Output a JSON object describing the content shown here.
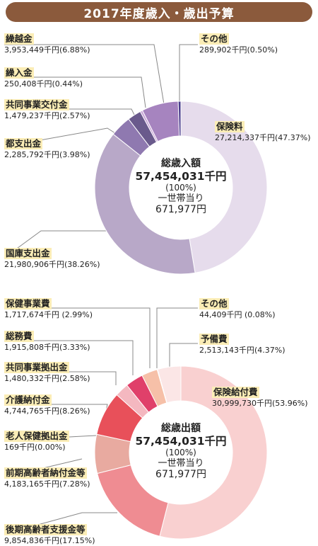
{
  "title": "2017年度歳入・歳出予算",
  "colors": {
    "banner": "#8b5a3c",
    "label_bg": "#fbedb6",
    "leader": "#888888"
  },
  "chart_data": [
    {
      "type": "pie",
      "donut": true,
      "name_note": "歳入",
      "center": {
        "title": "総歳入額",
        "amount": "57,454,031千円",
        "percent": "(100%)",
        "per_household_label": "一世帯当り",
        "per_household_value": "671,977円"
      },
      "slices": [
        {
          "label": "保険料",
          "value_text": "27,214,337千円(47.37%)",
          "percent": 47.37,
          "color": "#e6dcec"
        },
        {
          "label": "国庫支出金",
          "value_text": "21,980,906千円(38.26%)",
          "percent": 38.26,
          "color": "#b8a8c8"
        },
        {
          "label": "都支出金",
          "value_text": "2,285,792千円(3.98%)",
          "percent": 3.98,
          "color": "#8f79b0"
        },
        {
          "label": "共同事業交付金",
          "value_text": "1,479,237千円(2.57%)",
          "percent": 2.57,
          "color": "#6a5a8c"
        },
        {
          "label": "繰入金",
          "value_text": "250,408千円(0.44%)",
          "percent": 0.44,
          "color": "#c9a6d8"
        },
        {
          "label": "繰越金",
          "value_text": "3,953,449千円(6.88%)",
          "percent": 6.88,
          "color": "#a684bf"
        },
        {
          "label": "その他",
          "value_text": "289,902千円(0.50%)",
          "percent": 0.5,
          "color": "#4a3c8c"
        }
      ]
    },
    {
      "type": "pie",
      "donut": true,
      "name_note": "歳出",
      "center": {
        "title": "総歳出額",
        "amount": "57,454,031千円",
        "percent": "(100%)",
        "per_household_label": "一世帯当り",
        "per_household_value": "671,977円"
      },
      "slices": [
        {
          "label": "保険給付費",
          "value_text": "30,999,730千円(53.96%)",
          "percent": 53.96,
          "color": "#f9d0d0"
        },
        {
          "label": "後期高齢者支援金等",
          "value_text": "9,854,836千円(17.15%)",
          "percent": 17.15,
          "color": "#ef8c92"
        },
        {
          "label": "前期高齢者納付金等",
          "value_text": "4,183,165千円(7.28%)",
          "percent": 7.28,
          "color": "#e8aaa0"
        },
        {
          "label": "老人保健拠出金",
          "value_text": "169千円(0.00%)",
          "percent": 0.0,
          "color": "#d04040"
        },
        {
          "label": "介護納付金",
          "value_text": "4,744,765千円(8.26%)",
          "percent": 8.26,
          "color": "#e8505a"
        },
        {
          "label": "共同事業拠出金",
          "value_text": "1,480,332千円(2.58%)",
          "percent": 2.58,
          "color": "#f4b8c0"
        },
        {
          "label": "総務費",
          "value_text": "1,915,808千円(3.33%)",
          "percent": 3.33,
          "color": "#e0406a"
        },
        {
          "label": "保健事業費",
          "value_text": "1,717,674千円 (2.99%)",
          "percent": 2.99,
          "color": "#f6c0a8"
        },
        {
          "label": "その他",
          "value_text": "44,409千円 (0.08%)",
          "percent": 0.08,
          "color": "#d05050"
        },
        {
          "label": "予備費",
          "value_text": "2,513,143千円(4.37%)",
          "percent": 4.37,
          "color": "#fbe6e6"
        }
      ]
    }
  ]
}
